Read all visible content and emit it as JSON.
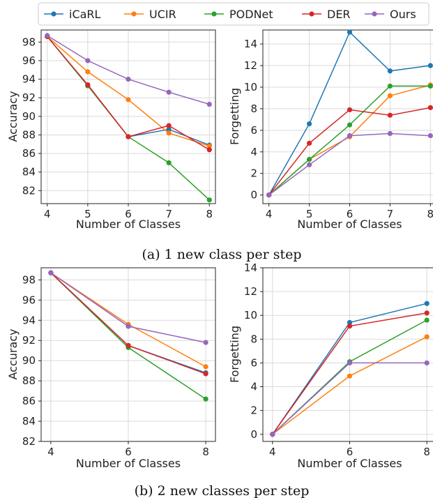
{
  "legend": {
    "entries": [
      {
        "name": "iCaRL",
        "color": "#1f77b4"
      },
      {
        "name": "UCIR",
        "color": "#ff7f0e"
      },
      {
        "name": "PODNet",
        "color": "#2ca02c"
      },
      {
        "name": "DER",
        "color": "#d62728"
      },
      {
        "name": "Ours",
        "color": "#9467bd"
      }
    ]
  },
  "captions": {
    "a": "(a) 1 new class per step",
    "b": "(b) 2 new classes per step"
  },
  "chart_data": [
    {
      "type": "line",
      "xlabel": "Number of Classes",
      "ylabel": "Accuracy",
      "x": [
        4,
        5,
        6,
        7,
        8
      ],
      "xticks": [
        4,
        5,
        6,
        7,
        8
      ],
      "yticks": [
        82,
        84,
        86,
        88,
        90,
        92,
        94,
        96,
        98
      ],
      "xlim": [
        3.85,
        8.15
      ],
      "ylim": [
        80.6,
        99.3
      ],
      "grid": true,
      "series": [
        {
          "name": "iCaRL",
          "values": [
            98.6,
            93.3,
            87.8,
            88.6,
            86.9
          ]
        },
        {
          "name": "UCIR",
          "values": [
            98.6,
            94.8,
            91.8,
            88.2,
            86.8
          ]
        },
        {
          "name": "PODNet",
          "values": [
            98.6,
            93.3,
            87.8,
            85.0,
            81.0
          ]
        },
        {
          "name": "DER",
          "values": [
            98.6,
            93.4,
            87.8,
            89.0,
            86.4
          ]
        },
        {
          "name": "Ours",
          "values": [
            98.7,
            96.0,
            94.0,
            92.6,
            91.3
          ]
        }
      ]
    },
    {
      "type": "line",
      "xlabel": "Number of Classes",
      "ylabel": "Forgetting",
      "x": [
        4,
        5,
        6,
        7,
        8
      ],
      "xticks": [
        4,
        5,
        6,
        7,
        8
      ],
      "yticks": [
        0,
        2,
        4,
        6,
        8,
        10,
        12,
        14
      ],
      "xlim": [
        3.85,
        8.15
      ],
      "ylim": [
        -0.8,
        15.3
      ],
      "grid": true,
      "series": [
        {
          "name": "iCaRL",
          "values": [
            0,
            6.6,
            15.1,
            11.5,
            12.0
          ]
        },
        {
          "name": "UCIR",
          "values": [
            0,
            3.3,
            5.4,
            9.2,
            10.2
          ]
        },
        {
          "name": "PODNet",
          "values": [
            0,
            3.3,
            6.5,
            10.1,
            10.1
          ]
        },
        {
          "name": "DER",
          "values": [
            0,
            4.8,
            7.9,
            7.4,
            8.1
          ]
        },
        {
          "name": "Ours",
          "values": [
            0,
            2.8,
            5.5,
            5.7,
            5.5
          ]
        }
      ]
    },
    {
      "type": "line",
      "xlabel": "Number of Classes",
      "ylabel": "Accuracy",
      "x": [
        4,
        6,
        8
      ],
      "xticks": [
        4,
        6,
        8
      ],
      "yticks": [
        82,
        84,
        86,
        88,
        90,
        92,
        94,
        96,
        98
      ],
      "xlim": [
        3.75,
        8.25
      ],
      "ylim": [
        82,
        99.2
      ],
      "grid": true,
      "series": [
        {
          "name": "iCaRL",
          "values": [
            98.7,
            91.5,
            88.8
          ]
        },
        {
          "name": "UCIR",
          "values": [
            98.7,
            93.6,
            89.4
          ]
        },
        {
          "name": "PODNet",
          "values": [
            98.7,
            91.3,
            86.2
          ]
        },
        {
          "name": "DER",
          "values": [
            98.7,
            91.5,
            88.7
          ]
        },
        {
          "name": "Ours",
          "values": [
            98.7,
            93.4,
            91.8
          ]
        }
      ]
    },
    {
      "type": "line",
      "xlabel": "Number of Classes",
      "ylabel": "Forgetting",
      "x": [
        4,
        6,
        8
      ],
      "xticks": [
        4,
        6,
        8
      ],
      "yticks": [
        0,
        2,
        4,
        6,
        8,
        10,
        12,
        14
      ],
      "xlim": [
        3.75,
        8.25
      ],
      "ylim": [
        -0.6,
        14.0
      ],
      "grid": true,
      "series": [
        {
          "name": "iCaRL",
          "values": [
            0,
            9.4,
            11.0
          ]
        },
        {
          "name": "UCIR",
          "values": [
            0,
            4.9,
            8.2
          ]
        },
        {
          "name": "PODNet",
          "values": [
            0,
            6.1,
            9.6
          ]
        },
        {
          "name": "DER",
          "values": [
            0,
            9.1,
            10.2
          ]
        },
        {
          "name": "Ours",
          "values": [
            0,
            6.0,
            6.0
          ]
        }
      ]
    }
  ]
}
